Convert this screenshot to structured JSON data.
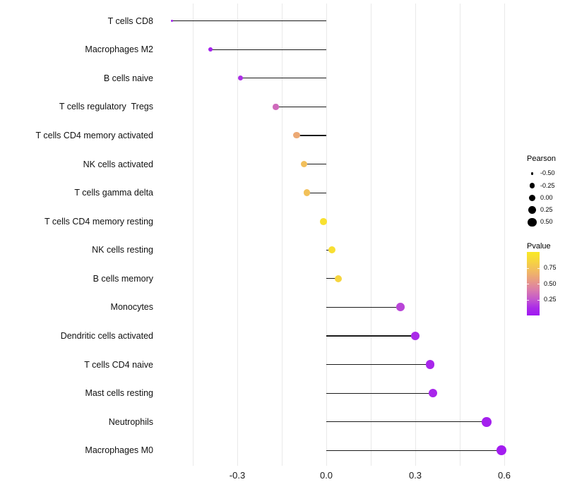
{
  "figure": {
    "background": "#FFFFFF",
    "grid_color": "#E9E9E9",
    "segment_color": "#1A1A1A",
    "axis_text_color": "#1A1A1A"
  },
  "chart_data": {
    "type": "scatter",
    "variant": "lollipop",
    "title": "",
    "xlabel": "",
    "ylabel": "",
    "grid": true,
    "legend_position": "right",
    "xlim": [
      -0.55,
      0.65
    ],
    "x_ticks": [
      {
        "label": "-0.3",
        "value": -0.3
      },
      {
        "label": "0.0",
        "value": 0.0
      },
      {
        "label": "0.3",
        "value": 0.3
      },
      {
        "label": "0.6",
        "value": 0.6
      }
    ],
    "categories": [
      "T cells CD8",
      "Macrophages M2",
      "B cells naive",
      "T cells regulatory  Tregs",
      "T cells CD4 memory activated",
      "NK cells activated",
      "T cells gamma delta",
      "T cells CD4 memory resting",
      "NK cells resting",
      "B cells memory",
      "Monocytes",
      "Dendritic cells activated",
      "T cells CD4 naive",
      "Mast cells resting",
      "Neutrophils",
      "Macrophages M0"
    ],
    "series": [
      {
        "name": "Pearson",
        "values": [
          -0.52,
          -0.39,
          -0.29,
          -0.17,
          -0.1,
          -0.075,
          -0.065,
          -0.01,
          0.02,
          0.04,
          0.25,
          0.3,
          0.35,
          0.36,
          0.54,
          0.59
        ]
      },
      {
        "name": "Pvalue",
        "values": [
          0.04,
          0.06,
          0.13,
          0.33,
          0.62,
          0.73,
          0.74,
          0.94,
          0.93,
          0.86,
          0.2,
          0.12,
          0.09,
          0.09,
          0.05,
          0.03
        ]
      }
    ]
  },
  "legend": {
    "size": {
      "title": "Pearson",
      "entries": [
        {
          "label": "-0.50",
          "value": -0.5
        },
        {
          "label": "-0.25",
          "value": -0.25
        },
        {
          "label": "0.00",
          "value": 0.0
        },
        {
          "label": "0.25",
          "value": 0.25
        },
        {
          "label": "0.50",
          "value": 0.5
        }
      ]
    },
    "color": {
      "title": "Pvalue",
      "ticks": [
        {
          "label": "0.75",
          "value": 0.75
        },
        {
          "label": "0.50",
          "value": 0.5
        },
        {
          "label": "0.25",
          "value": 0.25
        }
      ],
      "gradient_stops": [
        {
          "p": 0.0,
          "color": "#A018F2"
        },
        {
          "p": 0.12,
          "color": "#AA2BE8"
        },
        {
          "p": 0.25,
          "color": "#C356CE"
        },
        {
          "p": 0.4,
          "color": "#DA7BAC"
        },
        {
          "p": 0.55,
          "color": "#E89B84"
        },
        {
          "p": 0.7,
          "color": "#F1BA62"
        },
        {
          "p": 0.85,
          "color": "#F6D441"
        },
        {
          "p": 1.0,
          "color": "#F9E925"
        }
      ]
    }
  }
}
